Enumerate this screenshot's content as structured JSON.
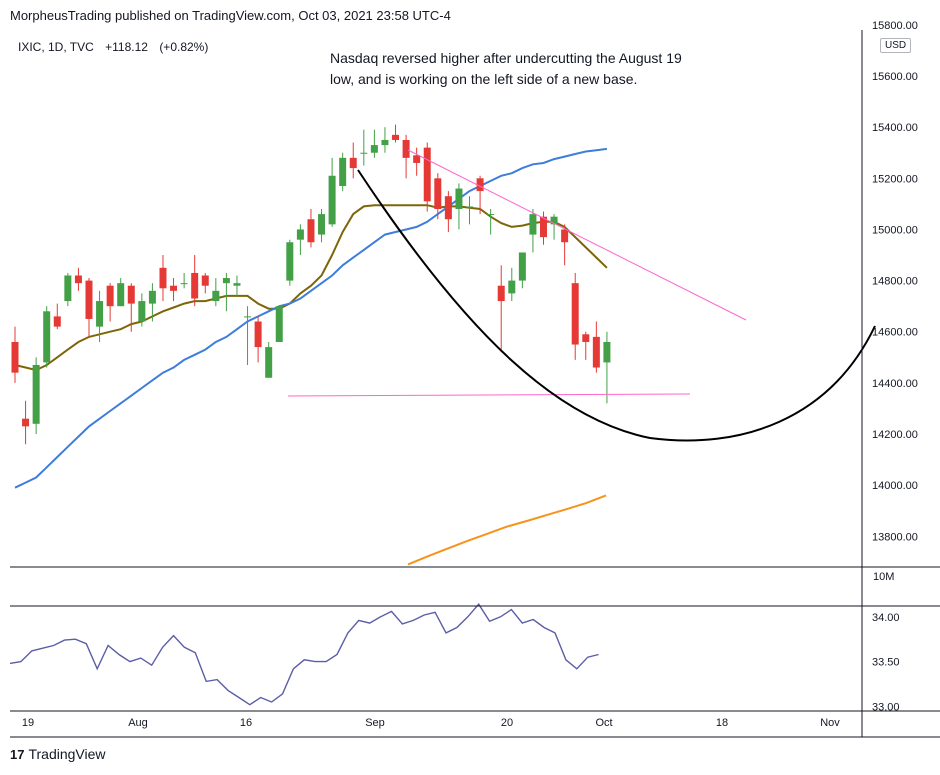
{
  "header": {
    "publisher_line": "MorpheusTrading published on TradingView.com, Oct 03, 2021 23:58 UTC-4"
  },
  "legend": {
    "symbol": "IXIC, 1D, TVC",
    "change": "+118.12",
    "change_pct": "(+0.82%)"
  },
  "annotation": {
    "line1": "Nasdaq reversed higher after undercutting the August 19",
    "line2": "low, and is working on the left side of a new base."
  },
  "currency_badge": "USD",
  "volume_label": "10M",
  "footer": {
    "brand": "TradingView",
    "logo": "17"
  },
  "colors": {
    "up": "#43a047",
    "down": "#e53935",
    "ma_short": "#7d6608",
    "ma_mid": "#3d7ddb",
    "ma_long": "#f7931a",
    "trendline": "#ff66cc",
    "base_curve": "#000000",
    "indicator": "#5b5ea6"
  },
  "chart_data": [
    {
      "type": "candlestick",
      "title": "",
      "ylim": [
        13680,
        15780
      ],
      "y_ticks": [
        "13800.00",
        "14000.00",
        "14200.00",
        "14400.00",
        "14600.00",
        "14800.00",
        "15000.00",
        "15200.00",
        "15400.00",
        "15600.00",
        "15800.00"
      ],
      "x_ticks": [
        "19",
        "Aug",
        "16",
        "Sep",
        "20",
        "Oct",
        "18",
        "Nov"
      ],
      "candles": [
        [
          14560,
          14620,
          14400,
          14440
        ],
        [
          14260,
          14330,
          14160,
          14230
        ],
        [
          14240,
          14500,
          14200,
          14470
        ],
        [
          14480,
          14700,
          14460,
          14680
        ],
        [
          14660,
          14710,
          14610,
          14620
        ],
        [
          14720,
          14830,
          14700,
          14820
        ],
        [
          14820,
          14850,
          14760,
          14790
        ],
        [
          14800,
          14810,
          14580,
          14650
        ],
        [
          14620,
          14760,
          14560,
          14720
        ],
        [
          14780,
          14790,
          14640,
          14700
        ],
        [
          14700,
          14810,
          14700,
          14790
        ],
        [
          14780,
          14790,
          14600,
          14710
        ],
        [
          14640,
          14750,
          14620,
          14720
        ],
        [
          14710,
          14790,
          14640,
          14760
        ],
        [
          14850,
          14900,
          14720,
          14770
        ],
        [
          14780,
          14810,
          14720,
          14760
        ],
        [
          14790,
          14830,
          14770,
          14790
        ],
        [
          14830,
          14900,
          14700,
          14730
        ],
        [
          14820,
          14830,
          14750,
          14780
        ],
        [
          14720,
          14810,
          14700,
          14760
        ],
        [
          14790,
          14830,
          14680,
          14810
        ],
        [
          14780,
          14820,
          14740,
          14790
        ],
        [
          14660,
          14700,
          14470,
          14660
        ],
        [
          14640,
          14660,
          14480,
          14540
        ],
        [
          14420,
          14560,
          14420,
          14540
        ],
        [
          14560,
          14700,
          14560,
          14700
        ],
        [
          14800,
          14960,
          14780,
          14950
        ],
        [
          14960,
          15020,
          14900,
          15000
        ],
        [
          15040,
          15080,
          14930,
          14950
        ],
        [
          14980,
          15080,
          14950,
          15060
        ],
        [
          15020,
          15280,
          15010,
          15210
        ],
        [
          15170,
          15300,
          15150,
          15280
        ],
        [
          15280,
          15340,
          15200,
          15240
        ],
        [
          15300,
          15390,
          15250,
          15300
        ],
        [
          15300,
          15390,
          15280,
          15330
        ],
        [
          15330,
          15400,
          15300,
          15350
        ],
        [
          15370,
          15410,
          15340,
          15350
        ],
        [
          15350,
          15370,
          15200,
          15280
        ],
        [
          15290,
          15320,
          15210,
          15260
        ],
        [
          15320,
          15340,
          15070,
          15110
        ],
        [
          15200,
          15220,
          15040,
          15080
        ],
        [
          15130,
          15150,
          14990,
          15040
        ],
        [
          15080,
          15180,
          15000,
          15160
        ],
        [
          15090,
          15130,
          15020,
          15090
        ],
        [
          15200,
          15210,
          15060,
          15150
        ],
        [
          15060,
          15080,
          14980,
          15060
        ],
        [
          14780,
          14860,
          14520,
          14720
        ],
        [
          14750,
          14850,
          14720,
          14800
        ],
        [
          14800,
          14910,
          14770,
          14910
        ],
        [
          14980,
          15080,
          14910,
          15060
        ],
        [
          15050,
          15070,
          14940,
          14970
        ],
        [
          15020,
          15060,
          14960,
          15050
        ],
        [
          15000,
          15020,
          14860,
          14950
        ],
        [
          14790,
          14830,
          14490,
          14550
        ],
        [
          14590,
          14600,
          14490,
          14560
        ],
        [
          14580,
          14640,
          14440,
          14460
        ],
        [
          14480,
          14600,
          14320,
          14560
        ]
      ],
      "series": [
        {
          "name": "",
          "values": [
            14470,
            14460,
            14450,
            14470,
            14500,
            14530,
            14560,
            14580,
            14590,
            14600,
            14610,
            14630,
            14640,
            14660,
            14680,
            14695,
            14710,
            14720,
            14720,
            14730,
            14740,
            14740,
            14740,
            14710,
            14690,
            14690,
            14710,
            14750,
            14780,
            14820,
            14900,
            14990,
            15060,
            15090,
            15095,
            15095,
            15095,
            15095,
            15095,
            15095,
            15085,
            15090,
            15090,
            15085,
            15080,
            15050,
            15025,
            15010,
            15015,
            15025,
            15030,
            15030,
            15010,
            14970,
            14930,
            14890,
            14850
          ]
        },
        {
          "name": "",
          "values": [
            13990,
            14010,
            14030,
            14070,
            14110,
            14150,
            14190,
            14230,
            14260,
            14290,
            14320,
            14350,
            14380,
            14410,
            14440,
            14460,
            14490,
            14510,
            14530,
            14560,
            14580,
            14610,
            14640,
            14660,
            14680,
            14700,
            14710,
            14730,
            14760,
            14790,
            14820,
            14860,
            14890,
            14920,
            14950,
            14980,
            14990,
            15000,
            15010,
            15030,
            15060,
            15090,
            15120,
            15150,
            15170,
            15190,
            15210,
            15220,
            15240,
            15255,
            15260,
            15275,
            15285,
            15295,
            15305,
            15310,
            15315
          ]
        },
        {
          "name": "",
          "values": [
            13690,
            13722,
            13752,
            13782,
            13810,
            13838,
            13860,
            13883,
            13906,
            13930,
            13960
          ]
        }
      ]
    },
    {
      "type": "line",
      "title": "",
      "ylim": [
        32.95,
        34.12
      ],
      "y_ticks": [
        "33.00",
        "33.50",
        "34.00"
      ],
      "values": [
        33.48,
        33.5,
        33.62,
        33.65,
        33.68,
        33.74,
        33.75,
        33.7,
        33.42,
        33.68,
        33.58,
        33.5,
        33.54,
        33.46,
        33.66,
        33.79,
        33.66,
        33.6,
        33.28,
        33.3,
        33.18,
        33.1,
        33.02,
        33.1,
        33.05,
        33.14,
        33.42,
        33.52,
        33.5,
        33.5,
        33.58,
        33.82,
        33.96,
        33.93,
        34,
        34.06,
        33.92,
        33.96,
        34.02,
        34.05,
        33.82,
        33.88,
        34,
        34.14,
        33.95,
        34,
        34.08,
        33.93,
        33.97,
        33.88,
        33.82,
        33.52,
        33.42,
        33.55,
        33.58
      ]
    }
  ]
}
